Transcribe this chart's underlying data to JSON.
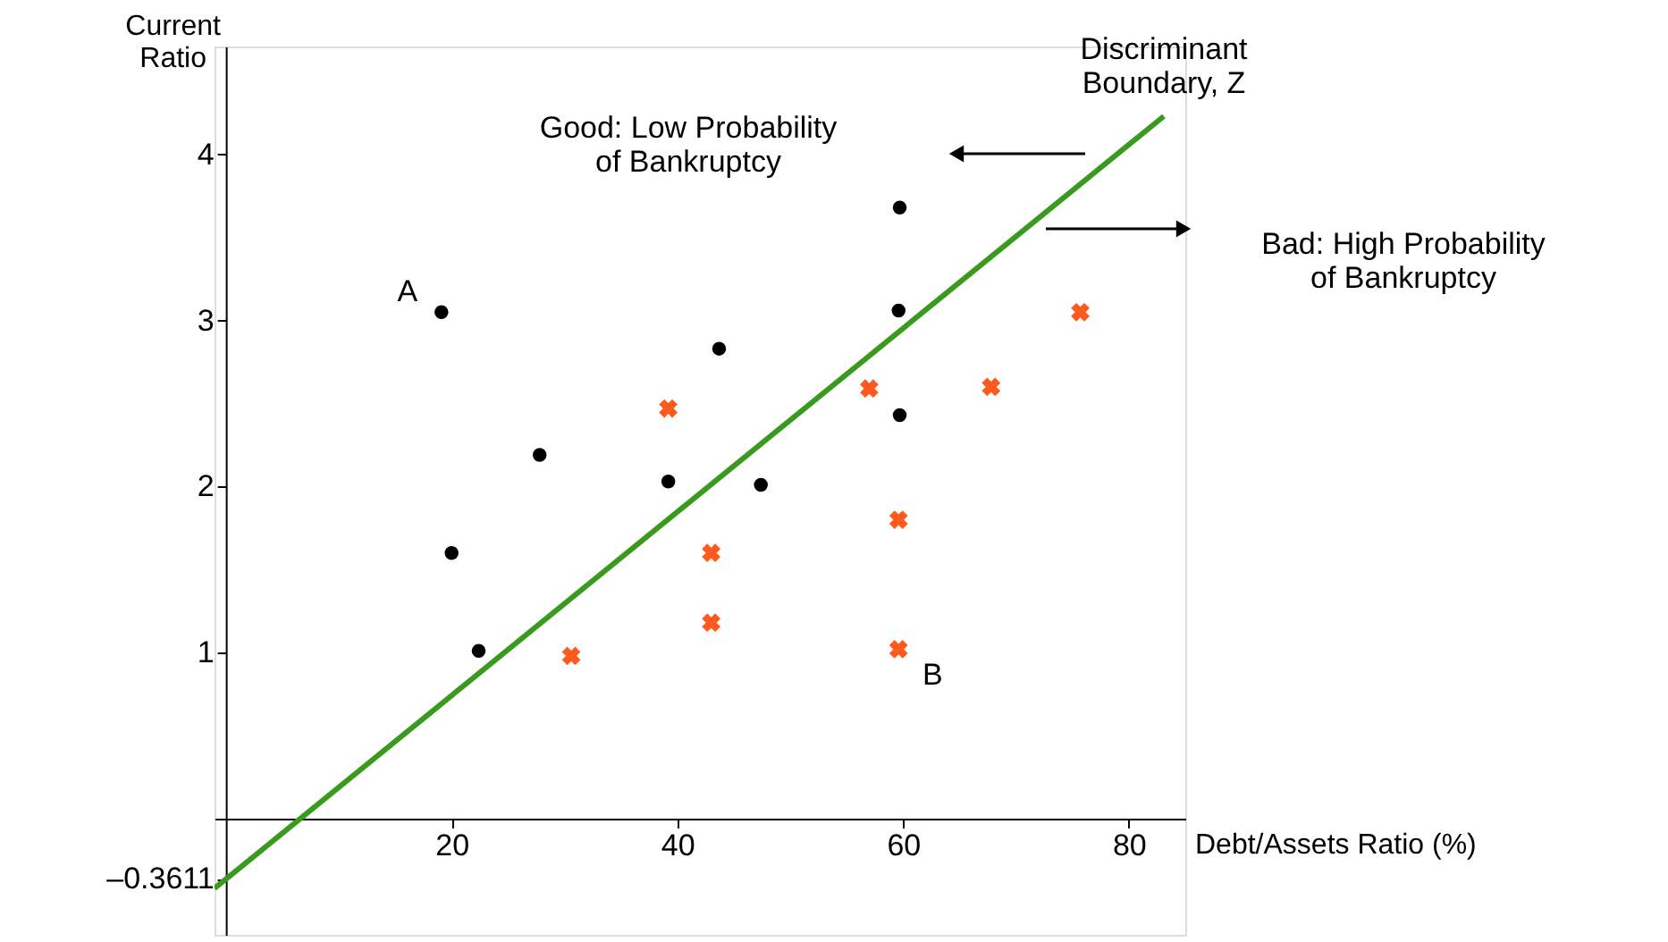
{
  "chart_data": {
    "type": "scatter",
    "xlabel": "Debt/Assets Ratio (%)",
    "ylabel": "Current\nRatio",
    "xlim": [
      -1,
      85
    ],
    "ylim": [
      -0.7,
      4.65
    ],
    "xticks": [
      20,
      40,
      60,
      80
    ],
    "yticks": [
      {
        "value": -0.3611,
        "label": "–0.3611"
      },
      1,
      2,
      3,
      4
    ],
    "series": [
      {
        "marker": "circle",
        "color": "#000000",
        "x": [
          19.1,
          20,
          22.4,
          27.8,
          39.2,
          43.7,
          47.4,
          59.7,
          59.6,
          59.7
        ],
        "values": [
          3.05,
          1.6,
          1.01,
          2.19,
          2.03,
          2.83,
          2.01,
          3.68,
          3.06,
          2.43
        ]
      },
      {
        "marker": "cross",
        "color": "#ff5a1e",
        "x": [
          30.6,
          39.2,
          43,
          43,
          57,
          59.6,
          59.6,
          67.8,
          75.7
        ],
        "values": [
          0.98,
          2.47,
          1.6,
          1.18,
          2.59,
          1.8,
          1.02,
          2.6,
          3.05
        ]
      },
      {
        "type": "line",
        "color": "#3a9a1e",
        "x": [
          -1,
          83.1
        ],
        "values": [
          -0.42,
          4.23
        ]
      }
    ],
    "annotations": [
      {
        "text": "A",
        "x": 19.1,
        "y": 3.05
      },
      {
        "text": "B",
        "x": 59.6,
        "y": 1.02
      },
      {
        "text": "Discriminant\nBoundary, Z",
        "x": 83.1,
        "y": 4.23
      },
      "Good: Low Probability\nof Bankruptcy",
      "Bad: High Probability\nof Bankruptcy"
    ]
  }
}
